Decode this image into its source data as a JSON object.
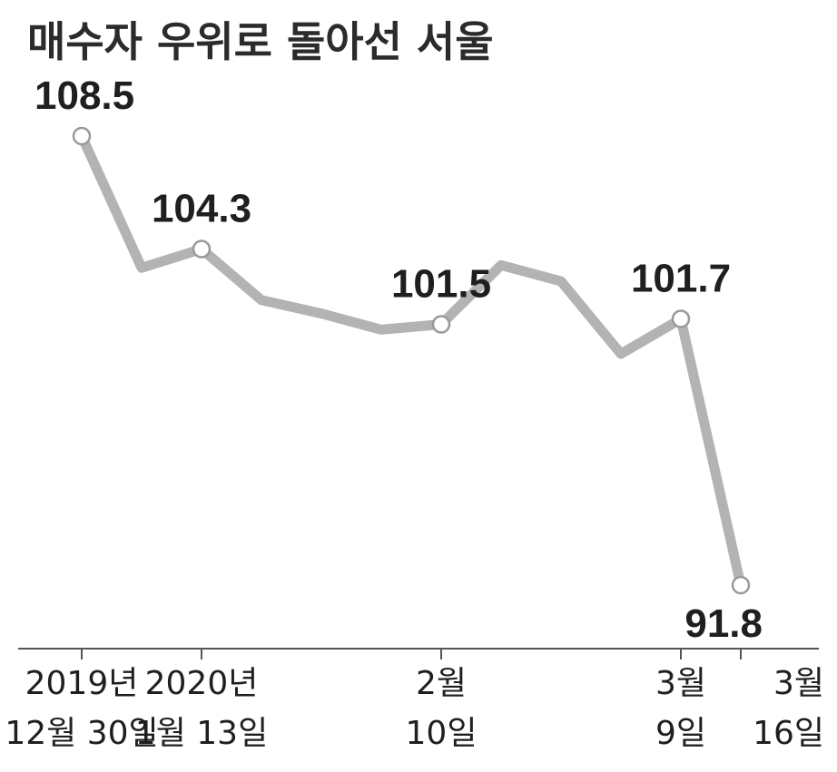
{
  "chart_data": {
    "type": "line",
    "title": "매수자 우위로 돌아선 서울",
    "xlabel": "",
    "ylabel": "",
    "grid": false,
    "ylim": [
      90,
      112
    ],
    "x": [
      "2019년 12월 30일",
      "2020년 1월 6일",
      "2020년 1월 13일",
      "2020년 1월 20일",
      "2020년 1월 27일",
      "2020년 2월 3일",
      "2020년 2월 10일",
      "2020년 2월 17일",
      "2020년 2월 24일",
      "2020년 3월 2일",
      "2020년 3월 9일",
      "2020년 3월 16일"
    ],
    "values": [
      108.5,
      103.6,
      104.3,
      102.4,
      101.9,
      101.3,
      101.5,
      103.7,
      103.1,
      100.4,
      101.7,
      91.8
    ],
    "value_labels": [
      {
        "index": 0,
        "text": "108.5"
      },
      {
        "index": 2,
        "text": "104.3"
      },
      {
        "index": 6,
        "text": "101.5"
      },
      {
        "index": 10,
        "text": "101.7"
      },
      {
        "index": 11,
        "text": "91.8"
      }
    ],
    "x_ticks": [
      {
        "index": 0,
        "line1": "2019년",
        "line2": "12월 30일"
      },
      {
        "index": 2,
        "line1": "2020년",
        "line2": "1월 13일"
      },
      {
        "index": 6,
        "line1": "2월",
        "line2": "10일"
      },
      {
        "index": 10,
        "line1": "3월",
        "line2": "9일"
      },
      {
        "index": 11,
        "line1": "3월",
        "line2": "16일"
      }
    ],
    "colors": {
      "line": "#b3b3b3",
      "marker_fill": "#ffffff",
      "marker_stroke": "#999999",
      "axis": "#555555",
      "text": "#1f1f1f"
    }
  }
}
